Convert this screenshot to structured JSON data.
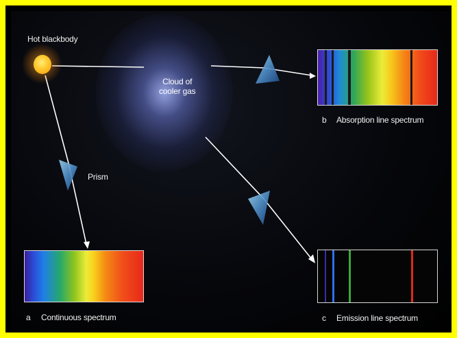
{
  "labels": {
    "source": "Hot blackbody",
    "cloud_line1": "Cloud of",
    "cloud_line2": "cooler gas",
    "prism": "Prism",
    "panel_a_letter": "a",
    "panel_a_title": "Continuous spectrum",
    "panel_b_letter": "b",
    "panel_b_title": "Absorption line spectrum",
    "panel_c_letter": "c",
    "panel_c_title": "Emission line spectrum"
  },
  "colors": {
    "border": "#ffff00",
    "background": "#000000",
    "ray": "#ffffff",
    "absorption_line": "#1a1a1a",
    "emission_violet": "#3a2ea8",
    "emission_blue": "#2f6ff0",
    "emission_green": "#3aa83a",
    "emission_red": "#e0281a"
  }
}
